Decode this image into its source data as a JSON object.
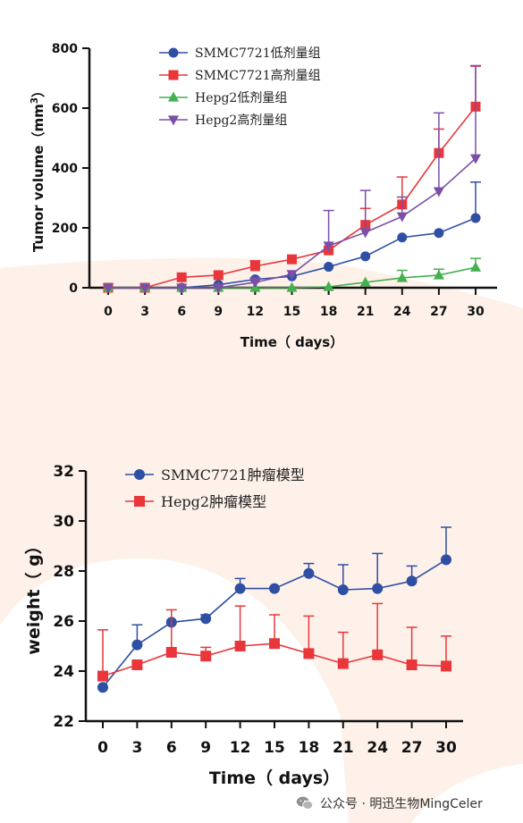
{
  "chart_data": [
    {
      "type": "line",
      "title": "",
      "xlabel": "Time（ days）",
      "ylabel": "Tumor volume（mm³）",
      "ylabel_main": "Tumor volume（mm",
      "ylabel_sup": "3",
      "ylabel_end": "）",
      "x": [
        0,
        3,
        6,
        9,
        12,
        15,
        18,
        21,
        24,
        27,
        30
      ],
      "xlim": [
        0,
        30
      ],
      "ylim": [
        0,
        800
      ],
      "yticks": [
        0,
        200,
        400,
        600,
        800
      ],
      "grid": false,
      "legend_position": "top-left",
      "series": [
        {
          "name": "SMMC7721低剂量组",
          "color": "#2e4fa3",
          "marker": "circle",
          "values": [
            0,
            0,
            0,
            10,
            28,
            38,
            70,
            105,
            168,
            183,
            233
          ],
          "errors": [
            0,
            0,
            0,
            0,
            0,
            0,
            0,
            0,
            0,
            0,
            120
          ]
        },
        {
          "name": "SMMC7721高剂量组",
          "color": "#e8363a",
          "marker": "square",
          "values": [
            0,
            0,
            35,
            42,
            72,
            95,
            125,
            210,
            278,
            450,
            605
          ],
          "errors": [
            0,
            0,
            0,
            0,
            18,
            0,
            0,
            55,
            92,
            80,
            135
          ]
        },
        {
          "name": "Hepg2低剂量组",
          "color": "#44b050",
          "marker": "triangle-up",
          "values": [
            0,
            0,
            0,
            0,
            0,
            0,
            3,
            18,
            33,
            42,
            68
          ],
          "errors": [
            0,
            0,
            0,
            0,
            0,
            0,
            0,
            0,
            25,
            20,
            30
          ]
        },
        {
          "name": "Hepg2高剂量组",
          "color": "#7b4fa8",
          "marker": "triangle-down",
          "values": [
            0,
            0,
            0,
            0,
            18,
            45,
            140,
            185,
            238,
            322,
            432
          ],
          "errors": [
            0,
            0,
            0,
            0,
            15,
            0,
            118,
            140,
            65,
            262,
            310
          ]
        }
      ]
    },
    {
      "type": "line",
      "title": "",
      "xlabel": "Time（ days）",
      "ylabel": "weight（ g）",
      "x": [
        0,
        3,
        6,
        9,
        12,
        15,
        18,
        21,
        24,
        27,
        30
      ],
      "xlim": [
        0,
        30
      ],
      "ylim": [
        22,
        32
      ],
      "yticks": [
        22,
        24,
        26,
        28,
        30,
        32
      ],
      "grid": false,
      "legend_position": "top-left",
      "series": [
        {
          "name": "SMMC7721肿瘤模型",
          "color": "#2e4fa3",
          "marker": "circle",
          "values": [
            23.35,
            25.05,
            25.95,
            26.1,
            27.3,
            27.3,
            27.9,
            27.25,
            27.3,
            27.6,
            28.45
          ],
          "errors": [
            0,
            0.8,
            0,
            0.15,
            0.4,
            0,
            0.4,
            1.0,
            1.4,
            0.6,
            1.3
          ]
        },
        {
          "name": "Hepg2肿瘤模型",
          "color": "#e8363a",
          "marker": "square",
          "values": [
            23.8,
            24.25,
            24.75,
            24.6,
            25.0,
            25.1,
            24.7,
            24.3,
            24.65,
            24.25,
            24.2
          ],
          "errors": [
            1.85,
            0,
            1.7,
            0.35,
            1.6,
            1.15,
            1.5,
            1.25,
            2.05,
            1.5,
            1.2
          ]
        }
      ]
    }
  ],
  "watermark": {
    "text": "公众号 · 明迅生物MingCeler",
    "icon": "wechat-icon"
  }
}
